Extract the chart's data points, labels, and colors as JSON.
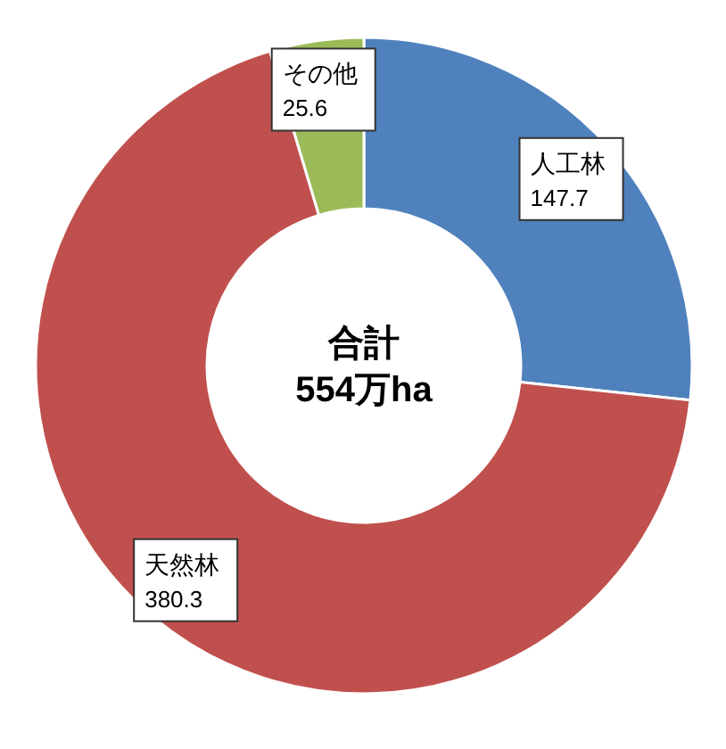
{
  "chart_data": {
    "type": "donut",
    "categories": [
      "人工林",
      "天然林",
      "その他"
    ],
    "values": [
      147.7,
      380.3,
      25.6
    ],
    "colors": [
      "#4f81bd",
      "#c0504d",
      "#9bbb59"
    ],
    "data_labels": true,
    "annotations": [
      "合計",
      "554万ha"
    ]
  }
}
